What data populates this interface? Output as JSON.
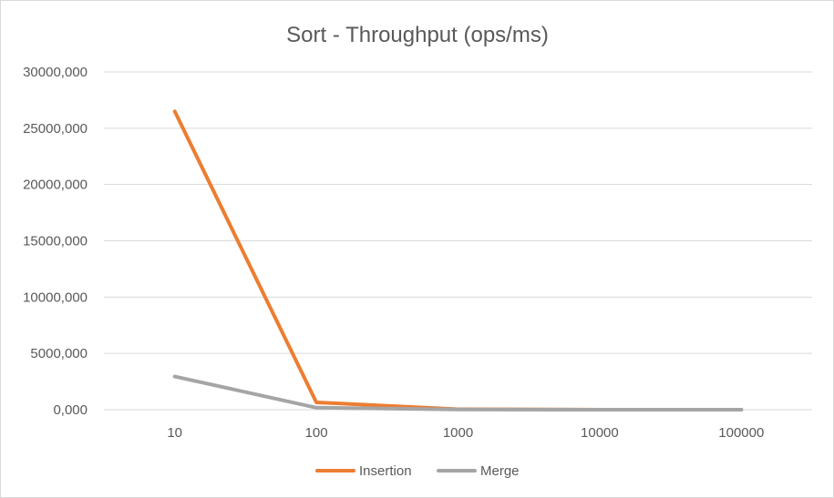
{
  "chart_data": {
    "type": "line",
    "title": "Sort - Throughput (ops/ms)",
    "xlabel": "",
    "ylabel": "",
    "categories": [
      "10",
      "100",
      "1000",
      "10000",
      "100000"
    ],
    "y_tick_labels": [
      "30000,000",
      "25000,000",
      "20000,000",
      "15000,000",
      "10000,000",
      "5000,000",
      "0,000"
    ],
    "y_ticks": [
      30000,
      25000,
      20000,
      15000,
      10000,
      5000,
      0
    ],
    "ylim": [
      0,
      30000
    ],
    "grid": true,
    "legend_position": "bottom",
    "series": [
      {
        "name": "Insertion",
        "values": [
          26500,
          650,
          40,
          5,
          0.5
        ],
        "color": "#ed7d31"
      },
      {
        "name": "Merge",
        "values": [
          2950,
          180,
          20,
          2,
          0.2
        ],
        "color": "#a5a5a5"
      }
    ]
  },
  "colors": {
    "grid": "#d9d9d9",
    "text": "#595959",
    "axis": "#d9d9d9"
  }
}
